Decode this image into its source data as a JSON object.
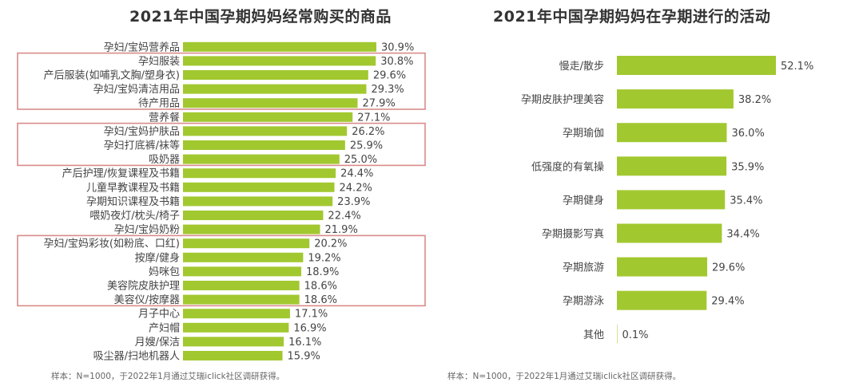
{
  "colors": {
    "bar": "#a2c830",
    "highlight_box": "#d98a8a"
  },
  "chart_data": [
    {
      "type": "bar",
      "orientation": "horizontal",
      "title": "2021年中国孕期妈妈经常购买的商品",
      "xlabel": "",
      "ylabel": "",
      "xlim": [
        0,
        32
      ],
      "categories": [
        "孕妇/宝妈营养品",
        "孕妇服装",
        "产后服装(如哺乳文胸/塑身衣)",
        "孕妇/宝妈清洁用品",
        "待产用品",
        "营养餐",
        "孕妇/宝妈护肤品",
        "孕妇打底裤/袜等",
        "吸奶器",
        "产后护理/恢复课程及书籍",
        "儿童早教课程及书籍",
        "孕期知识课程及书籍",
        "喂奶夜灯/枕头/椅子",
        "孕妇/宝妈奶粉",
        "孕妇/宝妈彩妆(如粉底、口红)",
        "按摩/健身",
        "妈咪包",
        "美容院皮肤护理",
        "美容仪/按摩器",
        "月子中心",
        "产妇帽",
        "月嫂/保洁",
        "吸尘器/扫地机器人"
      ],
      "values": [
        30.9,
        30.8,
        29.6,
        29.3,
        27.9,
        27.1,
        26.2,
        25.9,
        25.0,
        24.4,
        24.2,
        23.9,
        22.4,
        21.9,
        20.2,
        19.2,
        18.9,
        18.6,
        18.6,
        17.1,
        16.9,
        16.1,
        15.9
      ],
      "value_labels": [
        "30.9%",
        "30.8%",
        "29.6%",
        "29.3%",
        "27.9%",
        "27.1%",
        "26.2%",
        "25.9%",
        "25.0%",
        "24.4%",
        "24.2%",
        "23.9%",
        "22.4%",
        "21.9%",
        "20.2%",
        "19.2%",
        "18.9%",
        "18.6%",
        "18.6%",
        "17.1%",
        "16.9%",
        "16.1%",
        "15.9%"
      ],
      "highlight_groups": [
        [
          1,
          4
        ],
        [
          6,
          8
        ],
        [
          14,
          18
        ]
      ],
      "note": "样本：N=1000，于2022年1月通过艾瑞iclick社区调研获得。"
    },
    {
      "type": "bar",
      "orientation": "horizontal",
      "title": "2021年中国孕期妈妈在孕期进行的活动",
      "xlabel": "",
      "ylabel": "",
      "xlim": [
        0,
        55
      ],
      "categories": [
        "慢走/散步",
        "孕期皮肤护理美容",
        "孕期瑜伽",
        "低强度的有氧操",
        "孕期健身",
        "孕期摄影写真",
        "孕期旅游",
        "孕期游泳",
        "其他"
      ],
      "values": [
        52.1,
        38.2,
        36.0,
        35.9,
        35.4,
        34.4,
        29.6,
        29.4,
        0.1
      ],
      "value_labels": [
        "52.1%",
        "38.2%",
        "36.0%",
        "35.9%",
        "35.4%",
        "34.4%",
        "29.6%",
        "29.4%",
        "0.1%"
      ],
      "note": "样本：N=1000，于2022年1月通过艾瑞iclick社区调研获得。"
    }
  ]
}
